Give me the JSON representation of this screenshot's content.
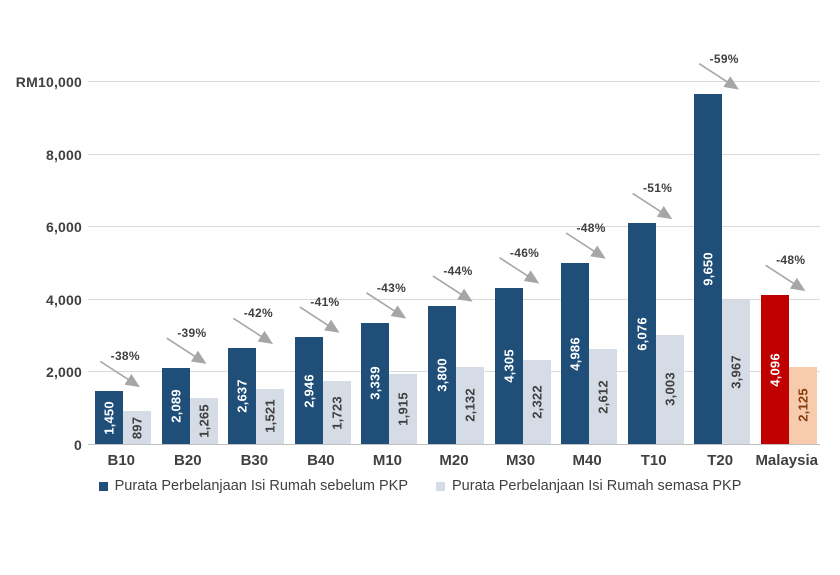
{
  "chart_data": {
    "type": "bar",
    "title": "",
    "categories": [
      "B10",
      "B20",
      "B30",
      "B40",
      "M10",
      "M20",
      "M30",
      "M40",
      "T10",
      "T20",
      "Malaysia"
    ],
    "series": [
      {
        "name": "Purata Perbelanjaan Isi Rumah sebelum PKP",
        "values": [
          1450,
          2089,
          2637,
          2946,
          3339,
          3800,
          4305,
          4986,
          6076,
          9650,
          4096
        ]
      },
      {
        "name": "Purata Perbelanjaan Isi Rumah semasa PKP",
        "values": [
          897,
          1265,
          1521,
          1723,
          1915,
          2132,
          2322,
          2612,
          3003,
          3967,
          2125
        ]
      }
    ],
    "change_annotations": [
      "-38%",
      "-39%",
      "-42%",
      "-41%",
      "-43%",
      "-44%",
      "-46%",
      "-48%",
      "-51%",
      "-59%",
      "-48%"
    ],
    "highlight_category": "Malaysia",
    "ylim": [
      0,
      10000
    ],
    "ytick_values": [
      0,
      2000,
      4000,
      6000,
      8000,
      10000
    ],
    "ytick_labels": [
      "0",
      "2,000",
      "4,000",
      "6,000",
      "8,000",
      "RM10,000"
    ],
    "xlabel": "",
    "ylabel": "RM",
    "grid": true,
    "legend_position": "bottom",
    "colors": {
      "before": "#1F4E79",
      "during": "#D6DCE5",
      "malaysia_before": "#C00000",
      "malaysia_during": "#F8CBAD",
      "value_label_on_dark": "#FFFFFF",
      "value_label_on_light": "#404040",
      "value_label_on_peach": "#843C0C",
      "arrow": "#A6A6A6",
      "axis_text": "#404040",
      "gridline": "#D9D9D9"
    }
  }
}
